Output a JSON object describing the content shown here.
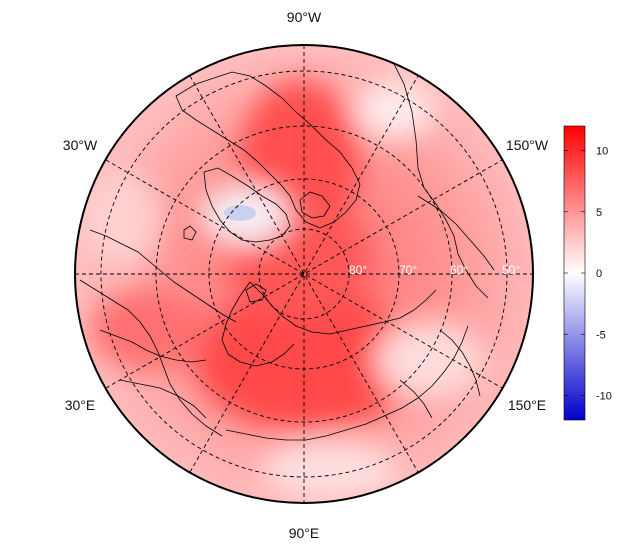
{
  "map": {
    "projection": "north-polar-stereographic",
    "lon_labels": {
      "top": "90°W",
      "bottom": "90°E",
      "upper_left": "30°W",
      "upper_right": "150°W",
      "lower_left": "30°E",
      "lower_right": "150°E"
    },
    "lat_labels": [
      "80°",
      "70°",
      "60°",
      "50°"
    ],
    "latitude_circles": [
      80,
      70,
      60,
      50
    ],
    "meridians_deg": [
      0,
      30,
      60,
      90,
      120,
      150
    ],
    "gridline_style": "dashed"
  },
  "colorbar": {
    "ticks": [
      "10",
      "5",
      "0",
      "-5",
      "-10"
    ],
    "tick_values": [
      10,
      5,
      0,
      -5,
      -10
    ],
    "min": -12,
    "max": 12,
    "colors": {
      "low": "#0000cc",
      "mid": "#ffffff",
      "high": "#ff0000"
    }
  },
  "field": {
    "description_colors": {
      "warm": "#ff5a5a",
      "pale": "#ffd6d6",
      "cold": "#c9cdee"
    }
  }
}
